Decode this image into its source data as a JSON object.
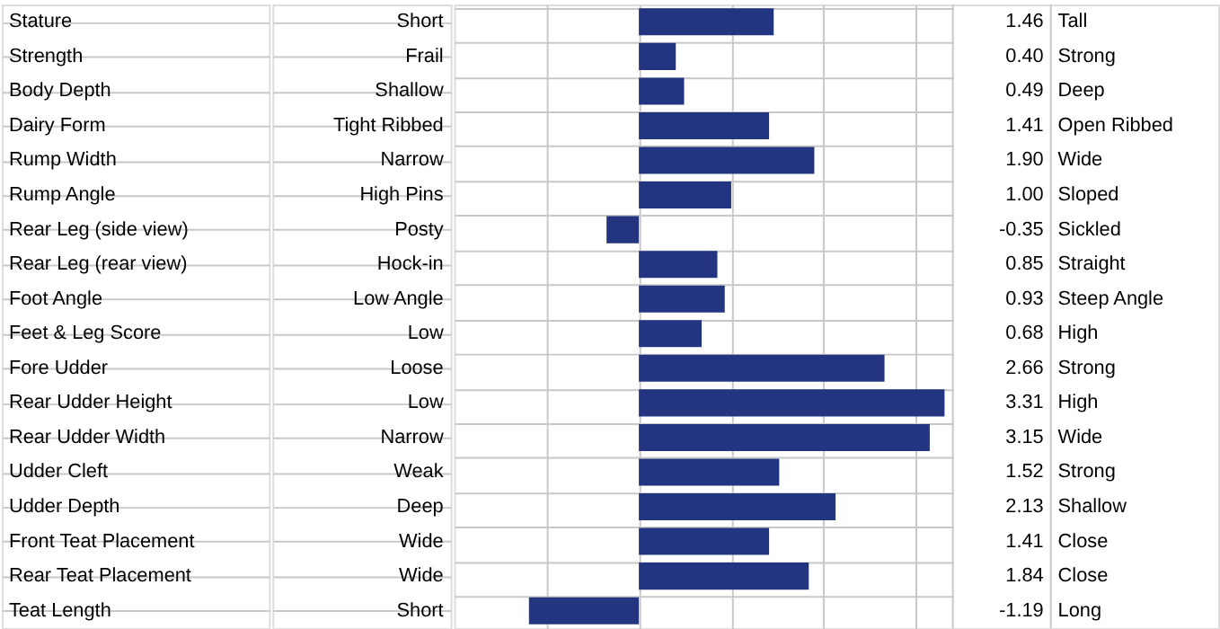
{
  "chart_data": {
    "type": "bar",
    "orientation": "horizontal",
    "color": "#233580",
    "grid": true,
    "categories": [
      "Stature",
      "Strength",
      "Body Depth",
      "Dairy Form",
      "Rump Width",
      "Rump Angle",
      "Rear Leg (side view)",
      "Rear Leg (rear view)",
      "Foot Angle",
      "Feet & Leg Score",
      "Fore Udder",
      "Rear Udder Height",
      "Rear Udder Width",
      "Udder Cleft",
      "Udder Depth",
      "Front Teat Placement",
      "Rear Teat Placement",
      "Teat Length"
    ],
    "values": [
      1.46,
      0.4,
      0.49,
      1.41,
      1.9,
      1.0,
      -0.35,
      0.85,
      0.93,
      0.68,
      2.66,
      3.31,
      3.15,
      1.52,
      2.13,
      1.41,
      1.84,
      -1.19
    ],
    "value_labels": [
      "1.46",
      "0.40",
      "0.49",
      "1.41",
      "1.90",
      "1.00",
      "-0.35",
      "0.85",
      "0.93",
      "0.68",
      "2.66",
      "3.31",
      "3.15",
      "1.52",
      "2.13",
      "1.41",
      "1.84",
      "-1.19"
    ],
    "xlim": [
      -2,
      3.4
    ],
    "xticks": [
      {
        "value": -1,
        "label": null
      },
      {
        "value": 0,
        "label": null
      },
      {
        "value": 1,
        "label": null
      },
      {
        "value": 2,
        "label": null
      },
      {
        "value": 3,
        "label": null
      }
    ],
    "tick_labels": false,
    "annotations": [
      "Short",
      "Tall",
      "Frail",
      "Strong",
      "Shallow",
      "Deep",
      "Tight Ribbed",
      "Open Ribbed",
      "Narrow",
      "Wide",
      "High Pins",
      "Sloped",
      "Posty",
      "Sickled",
      "Hock-in",
      "Straight",
      "Low Angle",
      "Steep Angle",
      "Low",
      "High",
      "Loose",
      "Strong",
      "Low",
      "High",
      "Narrow",
      "Wide",
      "Weak",
      "Strong",
      "Deep",
      "Shallow",
      "Wide",
      "Close",
      "Wide",
      "Close",
      "Short",
      "Long"
    ]
  }
}
